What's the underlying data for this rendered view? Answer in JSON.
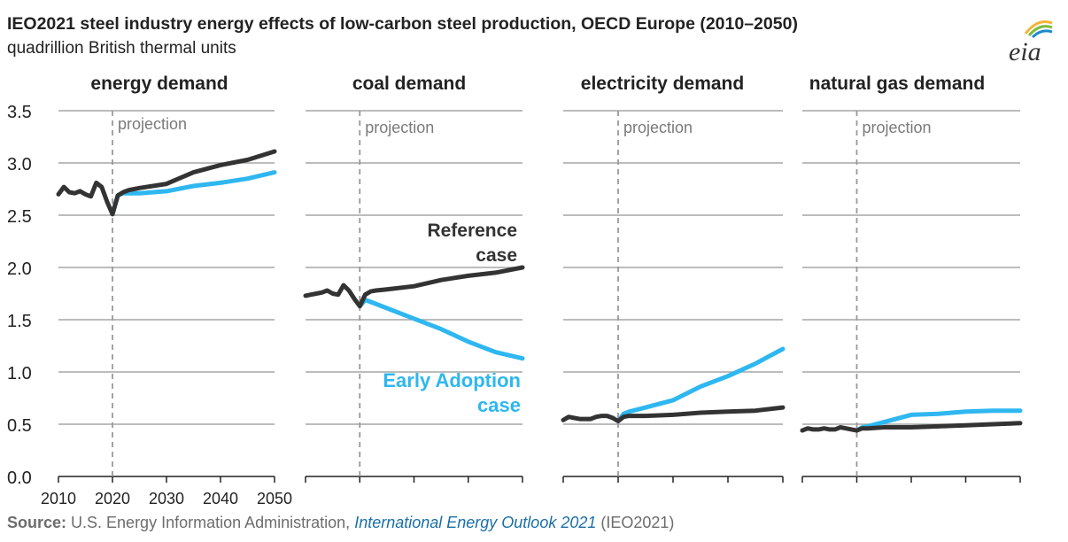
{
  "title": "IEO2021 steel industry energy effects of low-carbon steel production, OECD Europe (2010–2050)",
  "subtitle": "quadrillion British thermal units",
  "logo_text": "eia",
  "source": {
    "label": "Source:",
    "text": " U.S. Energy Information Administration, ",
    "publication": "International Energy Outlook 2021",
    "suffix": " (IEO2021)"
  },
  "colors": {
    "reference": "#333333",
    "early_adoption": "#2eb7f0",
    "grid": "#a6a6a6",
    "projection_line": "#999999",
    "logo_arc1": "#f5b335",
    "logo_arc2": "#7dbb42",
    "logo_arc3": "#1e88c9"
  },
  "chart_data": {
    "type": "line",
    "projection_label": "projection",
    "projection_start": 2020,
    "ylim": [
      0,
      3.5
    ],
    "yticks": [
      "0.0",
      "0.5",
      "1.0",
      "1.5",
      "2.0",
      "2.5",
      "3.0",
      "3.5"
    ],
    "xlim": [
      2010,
      2050
    ],
    "xticks": [
      "2010",
      "2020",
      "2030",
      "2040",
      "2050"
    ],
    "series_labels": {
      "reference": [
        "Reference",
        "case"
      ],
      "early_adoption": [
        "Early Adoption",
        "case"
      ]
    },
    "panels": [
      {
        "title": "energy demand",
        "reference": {
          "x": [
            2010,
            2011,
            2012,
            2013,
            2014,
            2015,
            2016,
            2017,
            2018,
            2019,
            2020,
            2021,
            2022,
            2023,
            2025,
            2030,
            2035,
            2040,
            2045,
            2050
          ],
          "y": [
            2.7,
            2.77,
            2.72,
            2.71,
            2.73,
            2.7,
            2.68,
            2.81,
            2.77,
            2.63,
            2.51,
            2.69,
            2.72,
            2.74,
            2.76,
            2.8,
            2.91,
            2.98,
            3.03,
            3.11
          ]
        },
        "early_adoption": {
          "x": [
            2020,
            2021,
            2022,
            2023,
            2025,
            2030,
            2035,
            2040,
            2045,
            2050
          ],
          "y": [
            2.51,
            2.69,
            2.71,
            2.71,
            2.71,
            2.73,
            2.78,
            2.81,
            2.85,
            2.91
          ]
        }
      },
      {
        "title": "coal demand",
        "reference": {
          "x": [
            2010,
            2011,
            2012,
            2013,
            2014,
            2015,
            2016,
            2017,
            2018,
            2019,
            2020,
            2021,
            2022,
            2023,
            2025,
            2030,
            2035,
            2040,
            2045,
            2050
          ],
          "y": [
            1.73,
            1.74,
            1.75,
            1.76,
            1.78,
            1.75,
            1.74,
            1.83,
            1.78,
            1.7,
            1.63,
            1.74,
            1.77,
            1.78,
            1.79,
            1.82,
            1.88,
            1.92,
            1.95,
            2.0
          ]
        },
        "early_adoption": {
          "x": [
            2020,
            2021,
            2022,
            2025,
            2030,
            2035,
            2040,
            2045,
            2050
          ],
          "y": [
            1.63,
            1.69,
            1.67,
            1.61,
            1.51,
            1.41,
            1.29,
            1.19,
            1.13
          ]
        }
      },
      {
        "title": "electricity demand",
        "reference": {
          "x": [
            2010,
            2011,
            2012,
            2013,
            2014,
            2015,
            2016,
            2017,
            2018,
            2019,
            2020,
            2021,
            2022,
            2025,
            2030,
            2035,
            2040,
            2045,
            2050
          ],
          "y": [
            0.54,
            0.57,
            0.56,
            0.55,
            0.55,
            0.55,
            0.57,
            0.58,
            0.58,
            0.56,
            0.53,
            0.57,
            0.58,
            0.58,
            0.59,
            0.61,
            0.62,
            0.63,
            0.66
          ]
        },
        "early_adoption": {
          "x": [
            2020,
            2021,
            2022,
            2025,
            2030,
            2035,
            2040,
            2045,
            2050
          ],
          "y": [
            0.53,
            0.6,
            0.62,
            0.66,
            0.73,
            0.86,
            0.96,
            1.08,
            1.22
          ]
        }
      },
      {
        "title": "natural gas demand",
        "reference": {
          "x": [
            2010,
            2011,
            2012,
            2013,
            2014,
            2015,
            2016,
            2017,
            2018,
            2019,
            2020,
            2021,
            2022,
            2025,
            2030,
            2035,
            2040,
            2045,
            2050
          ],
          "y": [
            0.44,
            0.46,
            0.45,
            0.45,
            0.46,
            0.45,
            0.45,
            0.47,
            0.46,
            0.45,
            0.44,
            0.46,
            0.46,
            0.47,
            0.47,
            0.48,
            0.49,
            0.5,
            0.51
          ]
        },
        "early_adoption": {
          "x": [
            2020,
            2021,
            2022,
            2025,
            2030,
            2035,
            2040,
            2045,
            2050
          ],
          "y": [
            0.44,
            0.47,
            0.48,
            0.52,
            0.59,
            0.6,
            0.62,
            0.63,
            0.63
          ]
        }
      }
    ]
  }
}
